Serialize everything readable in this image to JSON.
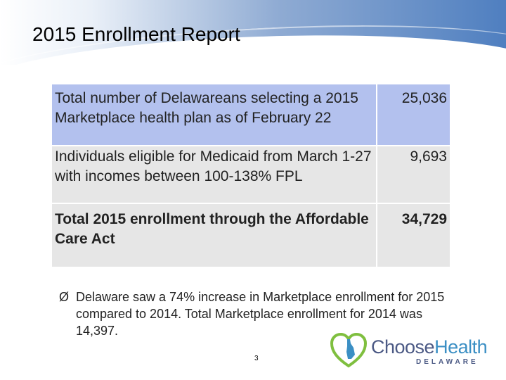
{
  "slide": {
    "title": "2015 Enrollment Report",
    "page_number": "3"
  },
  "table": {
    "rows": [
      {
        "label": "Total number of Delawareans selecting a 2015 Marketplace health plan as of February 22",
        "value": "25,036"
      },
      {
        "label": "Individuals eligible for Medicaid from March 1-27 with incomes between 100-138% FPL",
        "value": "9,693"
      },
      {
        "label": "Total 2015 enrollment through the Affordable Care Act",
        "value": "34,729"
      }
    ]
  },
  "bullet": {
    "marker": "Ø",
    "text": "Delaware saw a 74% increase in Marketplace enrollment for 2015 compared to 2014.  Total Marketplace enrollment for 2014 was 14,397."
  },
  "logo": {
    "word_choose": "Choose",
    "word_health": "Health",
    "sub": "DELAWARE",
    "icon": "delaware-heart-icon"
  },
  "colors": {
    "row_highlight": "#b3c1ee",
    "row_gray": "#e6e6e6",
    "header_blue": "#4f7fc0"
  }
}
